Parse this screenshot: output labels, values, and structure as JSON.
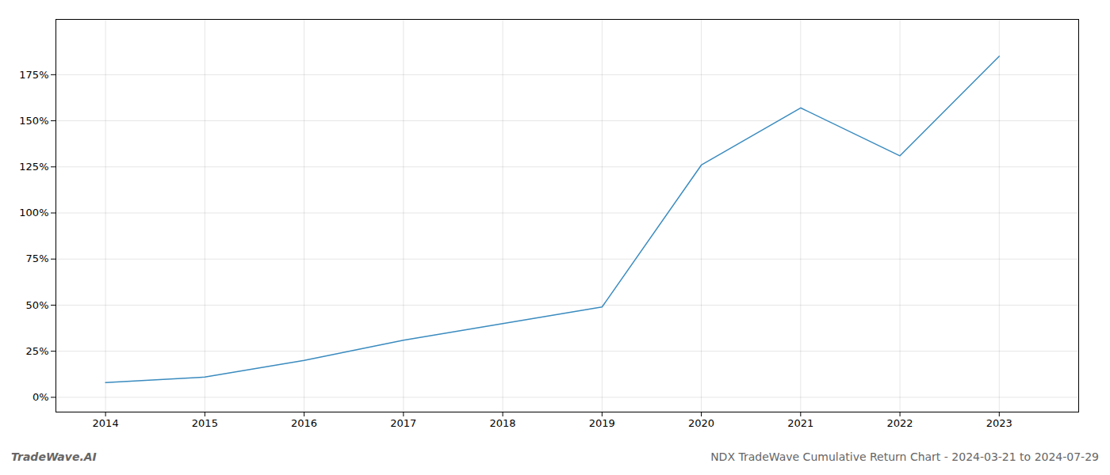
{
  "chart_data": {
    "type": "line",
    "title": "NDX TradeWave Cumulative Return Chart - 2024-03-21 to 2024-07-29",
    "annotations": [
      "TradeWave.AI"
    ],
    "x": [
      2014,
      2015,
      2016,
      2017,
      2018,
      2019,
      2020,
      2021,
      2022,
      2023
    ],
    "values": [
      8,
      11,
      20,
      31,
      40,
      49,
      126,
      157,
      131,
      185
    ],
    "color": "#3a8bbf",
    "xlim": [
      2013.5,
      2023.8
    ],
    "xticks": [
      2014,
      2015,
      2016,
      2017,
      2018,
      2019,
      2020,
      2021,
      2022,
      2023
    ],
    "ylim": [
      -8,
      205
    ],
    "yticks": [
      {
        "value": 0,
        "label": "0%"
      },
      {
        "value": 25,
        "label": "25%"
      },
      {
        "value": 50,
        "label": "50%"
      },
      {
        "value": 75,
        "label": "75%"
      },
      {
        "value": 100,
        "label": "100%"
      },
      {
        "value": 125,
        "label": "125%"
      },
      {
        "value": 150,
        "label": "150%"
      },
      {
        "value": 175,
        "label": "175%"
      }
    ],
    "grid": true
  }
}
